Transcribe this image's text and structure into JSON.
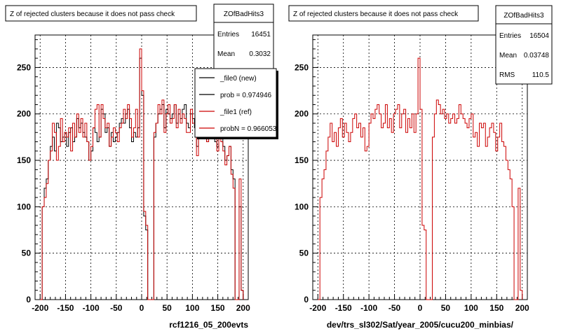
{
  "chart_data": [
    {
      "type": "step",
      "title": "Z of rejected clusters  because it does not pass check",
      "xlabel": "rcf1216_05_200evts",
      "ylabel": "",
      "xlim": [
        -210,
        210
      ],
      "ylim": [
        0,
        285
      ],
      "xticks": [
        -200,
        -150,
        -100,
        -50,
        0,
        50,
        100,
        150,
        200
      ],
      "yticks": [
        0,
        50,
        100,
        150,
        200,
        250
      ],
      "grid": true,
      "colors": {
        "new": "#000000",
        "ref": "#cc0000"
      },
      "stats": {
        "name": "ZOfBadHits3",
        "rows": [
          {
            "label": "Entries",
            "value": "16451"
          },
          {
            "label": "Mean",
            "value": "0.3032"
          }
        ]
      },
      "legend": {
        "placement": "top-right",
        "entries": [
          {
            "label": "_file0 (new)",
            "color": "#000000"
          },
          {
            "label": "prob = 0.974946",
            "color": "#000000"
          },
          {
            "label": "_file1 (ref)",
            "color": "#cc0000"
          },
          {
            "label": "probN = 0.966053",
            "color": "#cc0000"
          }
        ]
      },
      "bin_edges": [
        -200,
        200
      ],
      "series": [
        {
          "name": "_file0 (new)",
          "color": "#000000",
          "values": [
            0,
            100,
            120,
            130,
            150,
            165,
            175,
            160,
            190,
            185,
            170,
            175,
            180,
            165,
            180,
            185,
            170,
            175,
            195,
            185,
            190,
            180,
            175,
            170,
            150,
            160,
            185,
            180,
            170,
            175,
            205,
            200,
            180,
            185,
            165,
            180,
            170,
            175,
            180,
            190,
            195,
            190,
            200,
            205,
            185,
            170,
            180,
            175,
            185,
            260,
            220,
            90,
            75,
            0,
            0,
            0,
            175,
            190,
            200,
            205,
            210,
            185,
            205,
            200,
            195,
            200,
            210,
            190,
            200,
            195,
            205,
            210,
            190,
            185,
            200,
            195,
            185,
            165,
            180,
            190,
            175,
            185,
            170,
            185,
            180,
            195,
            170,
            165,
            180,
            175,
            165,
            150,
            155,
            165,
            140,
            130,
            0,
            0,
            100,
            10
          ]
        },
        {
          "name": "_file1 (ref)",
          "color": "#cc0000",
          "values": [
            0,
            100,
            110,
            125,
            150,
            160,
            190,
            180,
            150,
            165,
            195,
            170,
            180,
            175,
            185,
            160,
            190,
            175,
            200,
            180,
            195,
            175,
            190,
            170,
            150,
            165,
            185,
            205,
            210,
            175,
            210,
            195,
            185,
            190,
            165,
            175,
            185,
            180,
            170,
            185,
            190,
            205,
            195,
            210,
            195,
            175,
            185,
            205,
            175,
            270,
            225,
            95,
            80,
            0,
            0,
            0,
            180,
            190,
            210,
            200,
            215,
            180,
            200,
            210,
            190,
            195,
            210,
            185,
            205,
            190,
            200,
            195,
            180,
            180,
            205,
            190,
            190,
            155,
            175,
            185,
            180,
            190,
            170,
            175,
            195,
            185,
            175,
            160,
            175,
            170,
            160,
            145,
            155,
            165,
            135,
            120,
            0,
            0,
            130,
            10
          ]
        }
      ]
    },
    {
      "type": "step",
      "title": "Z of rejected clusters  because it does not pass check",
      "xlabel": "dev/trs_sl302/Sat/year_2005/cucu200_minbias/",
      "ylabel": "",
      "xlim": [
        -210,
        210
      ],
      "ylim": [
        0,
        285
      ],
      "xticks": [
        -200,
        -150,
        -100,
        -50,
        0,
        50,
        100,
        150,
        200
      ],
      "yticks": [
        0,
        50,
        100,
        150,
        200,
        250
      ],
      "grid": true,
      "stats": {
        "name": "ZOfBadHits3",
        "rows": [
          {
            "label": "Entries",
            "value": "16504"
          },
          {
            "label": "Mean",
            "value": "0.03748"
          },
          {
            "label": "RMS",
            "value": "110.5"
          }
        ]
      },
      "bin_edges": [
        -200,
        200
      ],
      "series": [
        {
          "name": "",
          "color": "#cc0000",
          "values": [
            0,
            110,
            130,
            140,
            160,
            175,
            190,
            170,
            180,
            165,
            185,
            195,
            175,
            190,
            180,
            170,
            180,
            195,
            200,
            185,
            190,
            175,
            185,
            160,
            165,
            190,
            200,
            195,
            205,
            210,
            200,
            185,
            190,
            210,
            185,
            195,
            180,
            200,
            205,
            210,
            185,
            200,
            205,
            180,
            195,
            185,
            200,
            180,
            200,
            260,
            205,
            80,
            75,
            0,
            0,
            0,
            175,
            200,
            215,
            210,
            200,
            205,
            195,
            200,
            190,
            195,
            200,
            190,
            195,
            210,
            200,
            195,
            190,
            185,
            195,
            200,
            175,
            180,
            165,
            190,
            185,
            190,
            165,
            175,
            185,
            190,
            180,
            160,
            175,
            190,
            170,
            165,
            150,
            140,
            130,
            100,
            0,
            0,
            120,
            10
          ]
        }
      ]
    }
  ]
}
